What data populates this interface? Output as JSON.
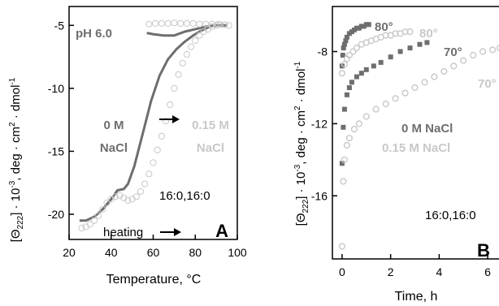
{
  "colors": {
    "dark": "#6e6e6e",
    "light": "#c8c8c8",
    "axis": "#000000"
  },
  "chart_data": [
    {
      "panel": "A",
      "type": "line",
      "xlabel": "Temperature, °C",
      "ylabel": "[Θ222] · 10-3, deg · cm2 · dmol-1",
      "xlim": [
        20,
        100
      ],
      "ylim": [
        -22,
        -3.5
      ],
      "xticks": [
        "20",
        "40",
        "60",
        "80",
        "100"
      ],
      "yticks": [
        "-5",
        "-10",
        "-15",
        "-20"
      ],
      "xtick_values": [
        20,
        40,
        60,
        80,
        100
      ],
      "ytick_values": [
        -5,
        -10,
        -15,
        -20
      ],
      "annotations": {
        "ph": "pH 6.0",
        "s1_line1": "0 M",
        "s1_line2": "NaCl",
        "s2_line1": "0.15 M",
        "s2_line2": "NaCl",
        "lipid": "16:0,16:0",
        "heating": "heating",
        "panel_label": "A"
      },
      "series": [
        {
          "style": "line",
          "color": "dark",
          "x": [
            25,
            28,
            32,
            36,
            40,
            43,
            46,
            48,
            51,
            55,
            59,
            63,
            67,
            71,
            75,
            79,
            83,
            87,
            91,
            95
          ],
          "y": [
            -20.5,
            -20.5,
            -20.2,
            -19.6,
            -18.8,
            -18.1,
            -18,
            -17.6,
            -16.2,
            -13.6,
            -11.0,
            -9.0,
            -7.7,
            -6.9,
            -6.3,
            -5.8,
            -5.4,
            -5.1,
            -5.0,
            -5.0
          ]
        },
        {
          "style": "line",
          "color": "dark",
          "x": [
            95,
            90,
            85,
            80,
            75,
            70,
            65,
            60,
            57
          ],
          "y": [
            -5.0,
            -5.0,
            -5.1,
            -5.3,
            -5.5,
            -5.8,
            -5.8,
            -5.7,
            -5.6
          ]
        },
        {
          "style": "markers",
          "color": "light",
          "x": [
            26,
            28,
            30,
            32,
            34,
            36,
            38,
            40,
            42,
            44,
            46,
            48,
            50,
            52,
            54,
            56,
            58,
            60,
            62,
            64,
            66,
            68,
            70,
            72,
            74,
            76,
            78,
            80,
            82,
            84,
            86,
            88,
            90,
            92,
            94,
            96
          ],
          "y": [
            -21.1,
            -21.0,
            -20.8,
            -20.5,
            -20.1,
            -19.6,
            -19.1,
            -18.8,
            -18.6,
            -18.5,
            -18.7,
            -18.9,
            -18.8,
            -18.6,
            -18.2,
            -17.6,
            -16.8,
            -15.9,
            -14.9,
            -13.8,
            -12.6,
            -11.3,
            -10.0,
            -8.9,
            -8.0,
            -7.3,
            -6.7,
            -6.2,
            -5.8,
            -5.5,
            -5.3,
            -5.1,
            -5.0,
            -4.95,
            -4.95,
            -5.0
          ]
        },
        {
          "style": "markers",
          "color": "light",
          "x": [
            58,
            61,
            64,
            67,
            70,
            73,
            76,
            79,
            82,
            85,
            88,
            91,
            94
          ],
          "y": [
            -4.9,
            -4.85,
            -4.85,
            -4.85,
            -4.8,
            -4.85,
            -4.85,
            -4.85,
            -4.9,
            -4.9,
            -4.9,
            -4.9,
            -4.95
          ]
        }
      ]
    },
    {
      "panel": "B",
      "type": "scatter",
      "xlabel": "Time, h",
      "ylabel": "[Θ222] · 10-3, deg · cm2 · dmol-1",
      "xlim": [
        -0.4,
        6.6
      ],
      "ylim": [
        -19.5,
        -5.5
      ],
      "xticks": [
        "0",
        "2",
        "4",
        "6"
      ],
      "yticks": [
        "-8",
        "-12",
        "-16"
      ],
      "xtick_values": [
        0,
        2,
        4,
        6
      ],
      "ytick_values": [
        -8,
        -12,
        -16
      ],
      "annotations": {
        "t80_dark": "80°",
        "t80_light": "80°",
        "t70_dark": "70°",
        "t70_light": "70°",
        "s1": "0 M NaCl",
        "s2": "0.15 M NaCl",
        "lipid": "16:0,16:0",
        "panel_label": "B"
      },
      "series": [
        {
          "label": "80°",
          "color": "dark",
          "x": [
            0.0,
            0.03,
            0.06,
            0.1,
            0.15,
            0.2,
            0.3,
            0.4,
            0.5,
            0.6,
            0.7,
            0.8,
            0.9,
            1.0,
            1.1
          ],
          "y": [
            -8.8,
            -8.2,
            -7.8,
            -7.6,
            -7.4,
            -7.2,
            -7.0,
            -6.9,
            -6.8,
            -6.7,
            -6.7,
            -6.6,
            -6.6,
            -6.5,
            -6.5
          ]
        },
        {
          "label": "80°",
          "color": "light",
          "x": [
            0.0,
            0.1,
            0.2,
            0.3,
            0.45,
            0.6,
            0.8,
            1.0,
            1.2,
            1.4,
            1.6,
            1.8,
            2.0,
            2.2,
            2.4,
            2.6,
            2.8
          ],
          "y": [
            -9.2,
            -8.7,
            -8.4,
            -8.2,
            -8.0,
            -7.8,
            -7.6,
            -7.5,
            -7.4,
            -7.3,
            -7.2,
            -7.1,
            -7.1,
            -7.0,
            -7.0,
            -6.9,
            -6.9
          ]
        },
        {
          "label": "70°",
          "color": "dark",
          "x": [
            0.0,
            0.05,
            0.1,
            0.2,
            0.3,
            0.4,
            0.6,
            0.8,
            1.0,
            1.3,
            1.6,
            2.0,
            2.4,
            2.8,
            3.2,
            3.5
          ],
          "y": [
            -14.2,
            -12.2,
            -11.2,
            -10.4,
            -10.0,
            -9.7,
            -9.4,
            -9.2,
            -9.0,
            -8.8,
            -8.6,
            -8.3,
            -8.0,
            -7.8,
            -7.6,
            -7.5
          ]
        },
        {
          "label": "70°",
          "color": "light",
          "x": [
            0.0,
            0.05,
            0.1,
            0.2,
            0.3,
            0.5,
            0.7,
            1.0,
            1.4,
            1.8,
            2.2,
            2.6,
            3.0,
            3.4,
            3.8,
            4.2,
            4.6,
            5.0,
            5.4,
            5.8,
            6.2,
            6.5
          ],
          "y": [
            -18.8,
            -15.2,
            -14.0,
            -13.2,
            -12.8,
            -12.3,
            -12.0,
            -11.6,
            -11.2,
            -10.9,
            -10.6,
            -10.3,
            -10.0,
            -9.7,
            -9.4,
            -9.1,
            -8.8,
            -8.5,
            -8.2,
            -8.0,
            -7.9,
            -7.8
          ]
        }
      ]
    }
  ]
}
